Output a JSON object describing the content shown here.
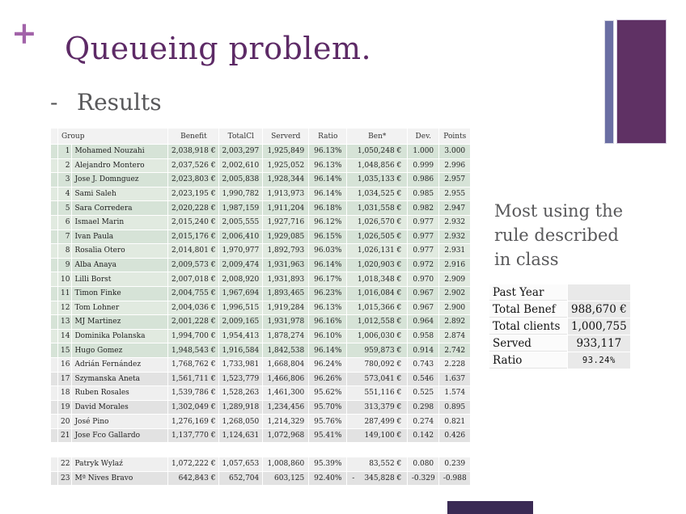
{
  "slide": {
    "plus_glyph": "+",
    "title": "Queueing problem.",
    "bullet_dash": "-",
    "bullet_text": "Results"
  },
  "colors": {
    "c-title": "#5d2a66",
    "c-plus": "#a263a9",
    "c-subtitle": "#58585a",
    "c-bar-thin": "#6a6ea3",
    "c-bar-wide": "#5f3164",
    "c-footer": "#3a2a54",
    "c-green-a": "#d6e3d7",
    "c-green-b": "#e1eae0",
    "c-gray-a": "#e2e2e2",
    "c-gray-b": "#efefef",
    "c-header-row": "#f2f2f2"
  },
  "results_table": {
    "headers": {
      "group": "Group",
      "benefit": "Benefit",
      "totalcl": "TotalCl",
      "serverd": "Serverd",
      "ratio": "Ratio",
      "ben": "Ben*",
      "dev": "Dev.",
      "points": "Points"
    },
    "rows": [
      {
        "num": "1",
        "group": "Mohamed Nouzahi",
        "benefit": "2,038,918 €",
        "totalcl": "2,003,297",
        "serverd": "1,925,849",
        "ratio": "96.13%",
        "ben": "1,050,248 €",
        "dev": "1.000",
        "points": "3.000",
        "tone": "g1"
      },
      {
        "num": "2",
        "group": "Alejandro Montero",
        "benefit": "2,037,526 €",
        "totalcl": "2,002,610",
        "serverd": "1,925,052",
        "ratio": "96.13%",
        "ben": "1,048,856 €",
        "dev": "0.999",
        "points": "2.996",
        "tone": "g2"
      },
      {
        "num": "3",
        "group": "Jose J. Domnguez",
        "benefit": "2,023,803 €",
        "totalcl": "2,005,838",
        "serverd": "1,928,344",
        "ratio": "96.14%",
        "ben": "1,035,133 €",
        "dev": "0.986",
        "points": "2.957",
        "tone": "g1"
      },
      {
        "num": "4",
        "group": "Sami Saleh",
        "benefit": "2,023,195 €",
        "totalcl": "1,990,782",
        "serverd": "1,913,973",
        "ratio": "96.14%",
        "ben": "1,034,525 €",
        "dev": "0.985",
        "points": "2.955",
        "tone": "g2"
      },
      {
        "num": "5",
        "group": "Sara Corredera",
        "benefit": "2,020,228 €",
        "totalcl": "1,987,159",
        "serverd": "1,911,204",
        "ratio": "96.18%",
        "ben": "1,031,558 €",
        "dev": "0.982",
        "points": "2.947",
        "tone": "g1"
      },
      {
        "num": "6",
        "group": "Ismael Marin",
        "benefit": "2,015,240 €",
        "totalcl": "2,005,555",
        "serverd": "1,927,716",
        "ratio": "96.12%",
        "ben": "1,026,570 €",
        "dev": "0.977",
        "points": "2.932",
        "tone": "g2"
      },
      {
        "num": "7",
        "group": "Ivan Paula",
        "benefit": "2,015,176 €",
        "totalcl": "2,006,410",
        "serverd": "1,929,085",
        "ratio": "96.15%",
        "ben": "1,026,505 €",
        "dev": "0.977",
        "points": "2.932",
        "tone": "g1"
      },
      {
        "num": "8",
        "group": "Rosalia Otero",
        "benefit": "2,014,801 €",
        "totalcl": "1,970,977",
        "serverd": "1,892,793",
        "ratio": "96.03%",
        "ben": "1,026,131 €",
        "dev": "0.977",
        "points": "2.931",
        "tone": "g2"
      },
      {
        "num": "9",
        "group": "Alba Anaya",
        "benefit": "2,009,573 €",
        "totalcl": "2,009,474",
        "serverd": "1,931,963",
        "ratio": "96.14%",
        "ben": "1,020,903 €",
        "dev": "0.972",
        "points": "2.916",
        "tone": "g1"
      },
      {
        "num": "10",
        "group": "Lilli Borst",
        "benefit": "2,007,018 €",
        "totalcl": "2,008,920",
        "serverd": "1,931,893",
        "ratio": "96.17%",
        "ben": "1,018,348 €",
        "dev": "0.970",
        "points": "2.909",
        "tone": "g2"
      },
      {
        "num": "11",
        "group": "Timon Finke",
        "benefit": "2,004,755 €",
        "totalcl": "1,967,694",
        "serverd": "1,893,465",
        "ratio": "96.23%",
        "ben": "1,016,084 €",
        "dev": "0.967",
        "points": "2.902",
        "tone": "g1"
      },
      {
        "num": "12",
        "group": "Tom Lohner",
        "benefit": "2,004,036 €",
        "totalcl": "1,996,515",
        "serverd": "1,919,284",
        "ratio": "96.13%",
        "ben": "1,015,366 €",
        "dev": "0.967",
        "points": "2.900",
        "tone": "g2"
      },
      {
        "num": "13",
        "group": "MJ Martinez",
        "benefit": "2,001,228 €",
        "totalcl": "2,009,165",
        "serverd": "1,931,978",
        "ratio": "96.16%",
        "ben": "1,012,558 €",
        "dev": "0.964",
        "points": "2.892",
        "tone": "g1"
      },
      {
        "num": "14",
        "group": "Dominika Polanska",
        "benefit": "1,994,700 €",
        "totalcl": "1,954,413",
        "serverd": "1,878,274",
        "ratio": "96.10%",
        "ben": "1,006,030 €",
        "dev": "0.958",
        "points": "2.874",
        "tone": "g2"
      },
      {
        "num": "15",
        "group": "Hugo Gomez",
        "benefit": "1,948,543 €",
        "totalcl": "1,916,584",
        "serverd": "1,842,538",
        "ratio": "96.14%",
        "ben": "959,873 €",
        "dev": "0.914",
        "points": "2.742",
        "tone": "g1"
      },
      {
        "num": "16",
        "group": "Adrián Fernández",
        "benefit": "1,768,762 €",
        "totalcl": "1,733,981",
        "serverd": "1,668,804",
        "ratio": "96.24%",
        "ben": "780,092 €",
        "dev": "0.743",
        "points": "2.228",
        "tone": "n2"
      },
      {
        "num": "17",
        "group": "Szymanska Aneta",
        "benefit": "1,561,711 €",
        "totalcl": "1,523,779",
        "serverd": "1,466,806",
        "ratio": "96.26%",
        "ben": "573,041 €",
        "dev": "0.546",
        "points": "1.637",
        "tone": "n1"
      },
      {
        "num": "18",
        "group": "Ruben Rosales",
        "benefit": "1,539,786 €",
        "totalcl": "1,528,263",
        "serverd": "1,461,300",
        "ratio": "95.62%",
        "ben": "551,116 €",
        "dev": "0.525",
        "points": "1.574",
        "tone": "n2"
      },
      {
        "num": "19",
        "group": "David Morales",
        "benefit": "1,302,049 €",
        "totalcl": "1,289,918",
        "serverd": "1,234,456",
        "ratio": "95.70%",
        "ben": "313,379 €",
        "dev": "0.298",
        "points": "0.895",
        "tone": "n1"
      },
      {
        "num": "20",
        "group": "José Pino",
        "benefit": "1,276,169 €",
        "totalcl": "1,268,050",
        "serverd": "1,214,329",
        "ratio": "95.76%",
        "ben": "287,499 €",
        "dev": "0.274",
        "points": "0.821",
        "tone": "n2"
      },
      {
        "num": "21",
        "group": "Jose Fco Gallardo",
        "benefit": "1,137,770 €",
        "totalcl": "1,124,631",
        "serverd": "1,072,968",
        "ratio": "95.41%",
        "ben": "149,100 €",
        "dev": "0.142",
        "points": "0.426",
        "tone": "n1"
      },
      {
        "num": "",
        "group": "",
        "benefit": "",
        "totalcl": "",
        "serverd": "",
        "ratio": "",
        "ben": "",
        "dev": "",
        "points": "",
        "tone": "x"
      },
      {
        "num": "22",
        "group": "Patryk Wylaź",
        "benefit": "1,072,222 €",
        "totalcl": "1,057,653",
        "serverd": "1,008,860",
        "ratio": "95.39%",
        "ben": "83,552 €",
        "dev": "0.080",
        "points": "0.239",
        "tone": "n2"
      },
      {
        "num": "23",
        "group": "Mª Nives Bravo",
        "benefit": "642,843 €",
        "totalcl": "652,704",
        "serverd": "603,125",
        "ratio": "92.40%",
        "ben": "345,828 €",
        "ben_minus": "-",
        "dev": "-0.329",
        "points": "-0.988",
        "tone": "n1"
      }
    ]
  },
  "side_note": "Most using the rule described in class",
  "summary_table": {
    "rows": [
      {
        "label": "Past Year",
        "value": ""
      },
      {
        "label": "Total Benef",
        "value": "988,670 €"
      },
      {
        "label": "Total clients",
        "value": "1,000,755"
      },
      {
        "label": "Served",
        "value": "933,117"
      },
      {
        "label": "Ratio",
        "value": "93.24%",
        "small": true
      }
    ]
  }
}
